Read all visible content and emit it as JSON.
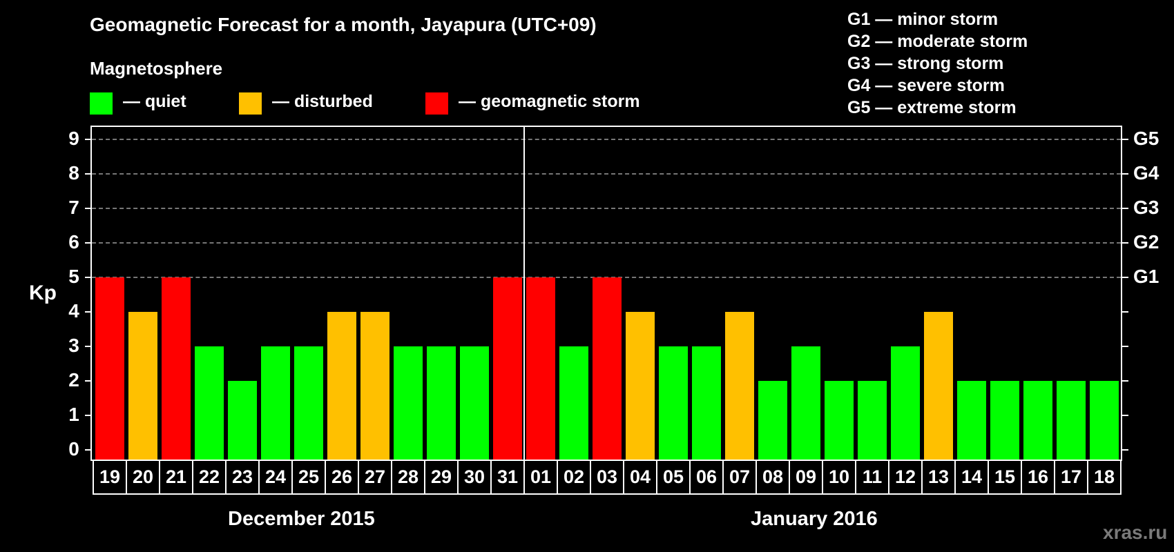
{
  "title": "Geomagnetic Forecast for a month, Jayapura (UTC+09)",
  "legend": {
    "heading": "Magnetosphere",
    "items": [
      {
        "label": "— quiet",
        "color": "#00ff00"
      },
      {
        "label": "— disturbed",
        "color": "#ffc000"
      },
      {
        "label": "— geomagnetic storm",
        "color": "#ff0000"
      }
    ]
  },
  "g_scale": [
    "G1 — minor storm",
    "G2 — moderate storm",
    "G3 — strong storm",
    "G4 — severe storm",
    "G5 — extreme storm"
  ],
  "watermark": "xras.ru",
  "colors": {
    "quiet": "#00ff00",
    "disturbed": "#ffc000",
    "storm": "#ff0000",
    "grid": "#777777",
    "watermark": "#7a7a7a"
  },
  "chart_data": {
    "type": "bar",
    "title": "Geomagnetic Forecast for a month, Jayapura (UTC+09)",
    "xlabel": "",
    "ylabel": "Kp",
    "ylim": [
      0,
      9
    ],
    "yticks": [
      0,
      1,
      2,
      3,
      4,
      5,
      6,
      7,
      8,
      9
    ],
    "right_axis_labels": [
      {
        "kp": 5,
        "label": "G1"
      },
      {
        "kp": 6,
        "label": "G2"
      },
      {
        "kp": 7,
        "label": "G3"
      },
      {
        "kp": 8,
        "label": "G4"
      },
      {
        "kp": 9,
        "label": "G5"
      }
    ],
    "grid": "dashed horizontal at Kp 5-9",
    "month_groups": [
      {
        "label": "December 2015",
        "days": [
          "19",
          "20",
          "21",
          "22",
          "23",
          "24",
          "25",
          "26",
          "27",
          "28",
          "29",
          "30",
          "31"
        ]
      },
      {
        "label": "January 2016",
        "days": [
          "01",
          "02",
          "03",
          "04",
          "05",
          "06",
          "07",
          "08",
          "09",
          "10",
          "11",
          "12",
          "13",
          "14",
          "15",
          "16",
          "17",
          "18"
        ]
      }
    ],
    "categories": [
      "19",
      "20",
      "21",
      "22",
      "23",
      "24",
      "25",
      "26",
      "27",
      "28",
      "29",
      "30",
      "31",
      "01",
      "02",
      "03",
      "04",
      "05",
      "06",
      "07",
      "08",
      "09",
      "10",
      "11",
      "12",
      "13",
      "14",
      "15",
      "16",
      "17",
      "18"
    ],
    "values": [
      5,
      4,
      5,
      3,
      2,
      3,
      3,
      4,
      4,
      3,
      3,
      3,
      5,
      5,
      3,
      5,
      4,
      3,
      3,
      4,
      2,
      3,
      2,
      2,
      3,
      4,
      2,
      2,
      2,
      2,
      2
    ],
    "status": [
      "storm",
      "disturbed",
      "storm",
      "quiet",
      "quiet",
      "quiet",
      "quiet",
      "disturbed",
      "disturbed",
      "quiet",
      "quiet",
      "quiet",
      "storm",
      "storm",
      "quiet",
      "storm",
      "disturbed",
      "quiet",
      "quiet",
      "disturbed",
      "quiet",
      "quiet",
      "quiet",
      "quiet",
      "quiet",
      "disturbed",
      "quiet",
      "quiet",
      "quiet",
      "quiet",
      "quiet"
    ],
    "legend": [
      "quiet",
      "disturbed",
      "geomagnetic storm"
    ],
    "legend_position": "top-left"
  }
}
